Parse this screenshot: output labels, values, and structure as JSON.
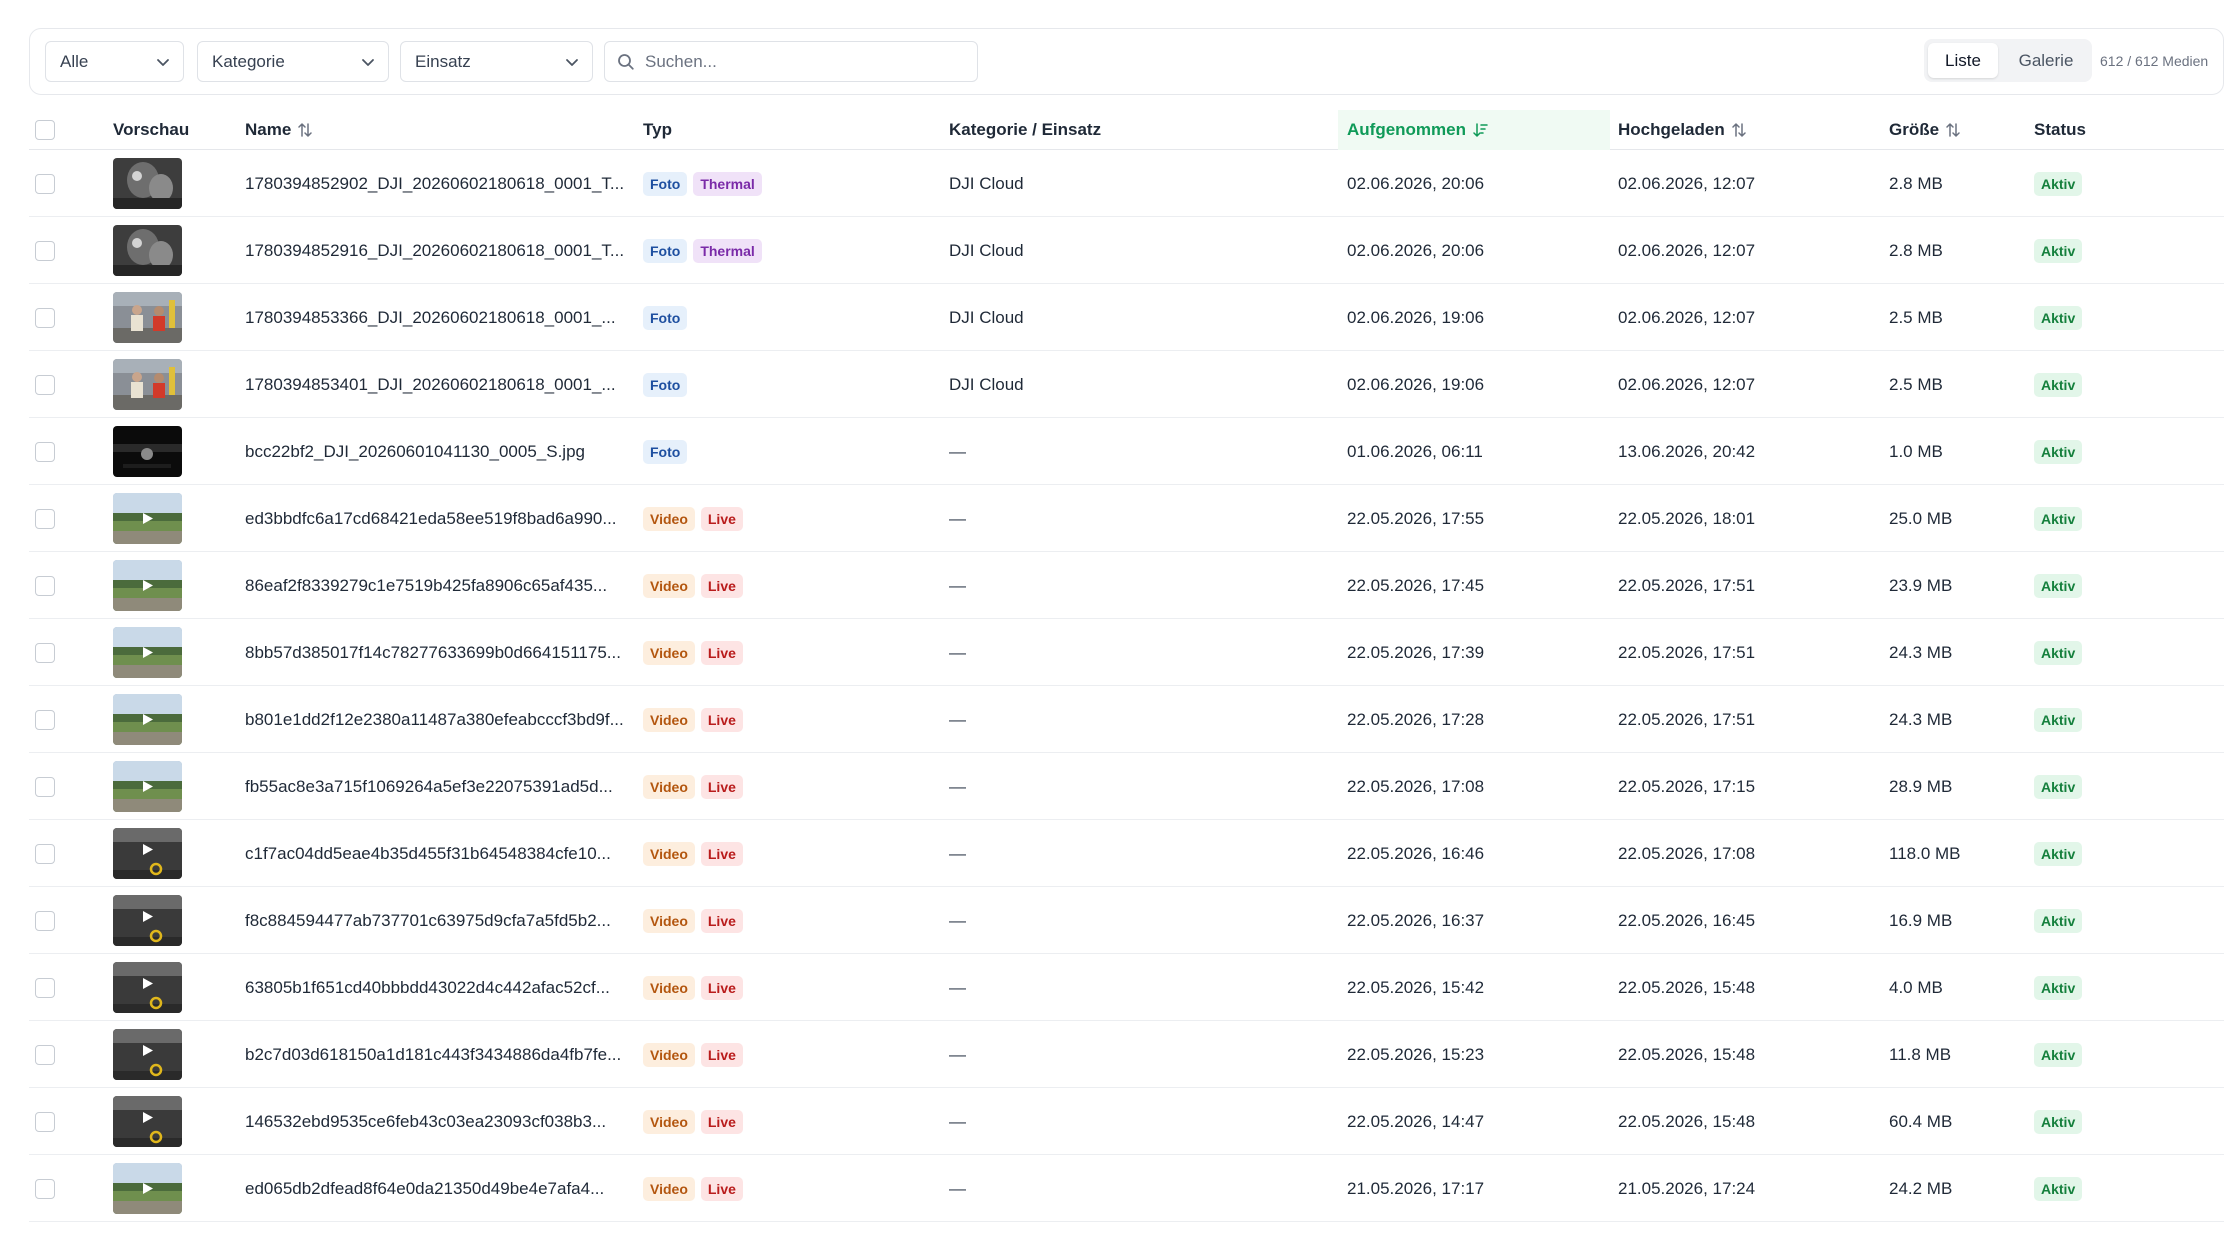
{
  "toolbar": {
    "filter_all": "Alle",
    "filter_category": "Kategorie",
    "filter_mission": "Einsatz",
    "search_placeholder": "Suchen...",
    "view_list": "Liste",
    "view_gallery": "Galerie",
    "count": "612 / 612 Medien"
  },
  "table": {
    "headers": {
      "preview": "Vorschau",
      "name": "Name",
      "type": "Typ",
      "category": "Kategorie / Einsatz",
      "captured": "Aufgenommen",
      "uploaded": "Hochgeladen",
      "size": "Größe",
      "status": "Status"
    },
    "rows": [
      {
        "thumb": "thermal",
        "name": "1780394852902_DJI_20260602180618_0001_T...",
        "badges": [
          "Foto",
          "Thermal"
        ],
        "category": "DJI Cloud",
        "captured": "02.06.2026, 20:06",
        "uploaded": "02.06.2026, 12:07",
        "size": "2.8 MB",
        "status": "Aktiv"
      },
      {
        "thumb": "thermal",
        "name": "1780394852916_DJI_20260602180618_0001_T...",
        "badges": [
          "Foto",
          "Thermal"
        ],
        "category": "DJI Cloud",
        "captured": "02.06.2026, 20:06",
        "uploaded": "02.06.2026, 12:07",
        "size": "2.8 MB",
        "status": "Aktiv"
      },
      {
        "thumb": "people",
        "name": "1780394853366_DJI_20260602180618_0001_...",
        "badges": [
          "Foto"
        ],
        "category": "DJI Cloud",
        "captured": "02.06.2026, 19:06",
        "uploaded": "02.06.2026, 12:07",
        "size": "2.5 MB",
        "status": "Aktiv"
      },
      {
        "thumb": "people",
        "name": "1780394853401_DJI_20260602180618_0001_...",
        "badges": [
          "Foto"
        ],
        "category": "DJI Cloud",
        "captured": "02.06.2026, 19:06",
        "uploaded": "02.06.2026, 12:07",
        "size": "2.5 MB",
        "status": "Aktiv"
      },
      {
        "thumb": "dark",
        "name": "bcc22bf2_DJI_20260601041130_0005_S.jpg",
        "badges": [
          "Foto"
        ],
        "category": "—",
        "captured": "01.06.2026, 06:11",
        "uploaded": "13.06.2026, 20:42",
        "size": "1.0 MB",
        "status": "Aktiv"
      },
      {
        "thumb": "field",
        "name": "ed3bbdfc6a17cd68421eda58ee519f8bad6a990...",
        "badges": [
          "Video",
          "Live"
        ],
        "category": "—",
        "captured": "22.05.2026, 17:55",
        "uploaded": "22.05.2026, 18:01",
        "size": "25.0 MB",
        "status": "Aktiv"
      },
      {
        "thumb": "field",
        "name": "86eaf2f8339279c1e7519b425fa8906c65af435...",
        "badges": [
          "Video",
          "Live"
        ],
        "category": "—",
        "captured": "22.05.2026, 17:45",
        "uploaded": "22.05.2026, 17:51",
        "size": "23.9 MB",
        "status": "Aktiv"
      },
      {
        "thumb": "field",
        "name": "8bb57d385017f14c78277633699b0d664151175...",
        "badges": [
          "Video",
          "Live"
        ],
        "category": "—",
        "captured": "22.05.2026, 17:39",
        "uploaded": "22.05.2026, 17:51",
        "size": "24.3 MB",
        "status": "Aktiv"
      },
      {
        "thumb": "field",
        "name": "b801e1dd2f12e2380a11487a380efeabcccf3bd9f...",
        "badges": [
          "Video",
          "Live"
        ],
        "category": "—",
        "captured": "22.05.2026, 17:28",
        "uploaded": "22.05.2026, 17:51",
        "size": "24.3 MB",
        "status": "Aktiv"
      },
      {
        "thumb": "field",
        "name": "fb55ac8e3a715f1069264a5ef3e22075391ad5d...",
        "badges": [
          "Video",
          "Live"
        ],
        "category": "—",
        "captured": "22.05.2026, 17:08",
        "uploaded": "22.05.2026, 17:15",
        "size": "28.9 MB",
        "status": "Aktiv"
      },
      {
        "thumb": "cam",
        "name": "c1f7ac04dd5eae4b35d455f31b64548384cfe10...",
        "badges": [
          "Video",
          "Live"
        ],
        "category": "—",
        "captured": "22.05.2026, 16:46",
        "uploaded": "22.05.2026, 17:08",
        "size": "118.0 MB",
        "status": "Aktiv"
      },
      {
        "thumb": "cam",
        "name": "f8c884594477ab737701c63975d9cfa7a5fd5b2...",
        "badges": [
          "Video",
          "Live"
        ],
        "category": "—",
        "captured": "22.05.2026, 16:37",
        "uploaded": "22.05.2026, 16:45",
        "size": "16.9 MB",
        "status": "Aktiv"
      },
      {
        "thumb": "cam",
        "name": "63805b1f651cd40bbbdd43022d4c442afac52cf...",
        "badges": [
          "Video",
          "Live"
        ],
        "category": "—",
        "captured": "22.05.2026, 15:42",
        "uploaded": "22.05.2026, 15:48",
        "size": "4.0 MB",
        "status": "Aktiv"
      },
      {
        "thumb": "cam",
        "name": "b2c7d03d618150a1d181c443f3434886da4fb7fe...",
        "badges": [
          "Video",
          "Live"
        ],
        "category": "—",
        "captured": "22.05.2026, 15:23",
        "uploaded": "22.05.2026, 15:48",
        "size": "11.8 MB",
        "status": "Aktiv"
      },
      {
        "thumb": "cam",
        "name": "146532ebd9535ce6feb43c03ea23093cf038b3...",
        "badges": [
          "Video",
          "Live"
        ],
        "category": "—",
        "captured": "22.05.2026, 14:47",
        "uploaded": "22.05.2026, 15:48",
        "size": "60.4 MB",
        "status": "Aktiv"
      },
      {
        "thumb": "field",
        "name": "ed065db2dfead8f64e0da21350d49be4e7afa4...",
        "badges": [
          "Video",
          "Live"
        ],
        "category": "—",
        "captured": "21.05.2026, 17:17",
        "uploaded": "21.05.2026, 17:24",
        "size": "24.2 MB",
        "status": "Aktiv"
      }
    ]
  }
}
